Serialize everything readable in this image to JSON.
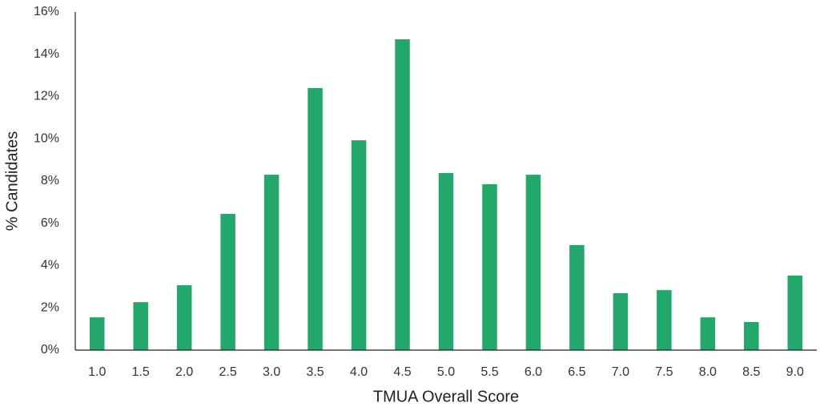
{
  "chart_data": {
    "type": "bar",
    "xlabel": "TMUA Overall Score",
    "ylabel": "% Candidates",
    "categories": [
      "1.0",
      "1.5",
      "2.0",
      "2.5",
      "3.0",
      "3.5",
      "4.0",
      "4.5",
      "5.0",
      "5.5",
      "6.0",
      "6.5",
      "7.0",
      "7.5",
      "8.0",
      "8.5",
      "9.0"
    ],
    "values": [
      1.55,
      2.27,
      3.07,
      6.45,
      8.3,
      12.4,
      9.93,
      14.71,
      8.38,
      7.85,
      8.3,
      4.97,
      2.69,
      2.84,
      1.55,
      1.33,
      3.53
    ],
    "color": "#21a86a",
    "ylim": [
      0,
      16
    ],
    "yticks": [
      {
        "value": 0,
        "label": "0%"
      },
      {
        "value": 2,
        "label": "2%"
      },
      {
        "value": 4,
        "label": "4%"
      },
      {
        "value": 6,
        "label": "6%"
      },
      {
        "value": 8,
        "label": "8%"
      },
      {
        "value": 10,
        "label": "10%"
      },
      {
        "value": 12,
        "label": "12%"
      },
      {
        "value": 14,
        "label": "14%"
      },
      {
        "value": 16,
        "label": "16%"
      }
    ],
    "grid": false
  }
}
